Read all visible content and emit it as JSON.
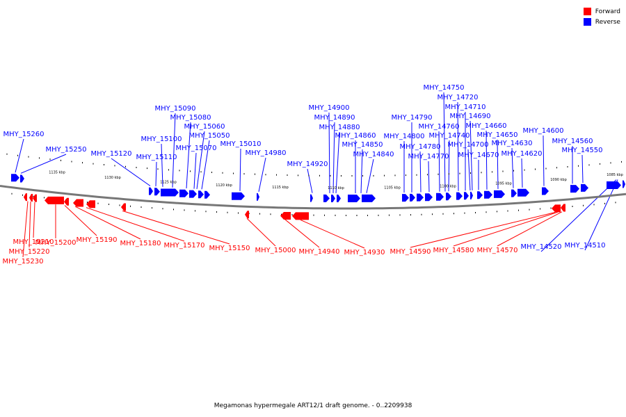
{
  "legend": [
    {
      "label": "Forward",
      "color": "#ff0000"
    },
    {
      "label": "Reverse",
      "color": "#0000ff"
    }
  ],
  "caption": "Megamonas hypermegale ART12/1 draft genome. - 0..2209938",
  "ruler_labels": [
    "1135 kbp",
    "1130 kbp",
    "1125 kbp",
    "1120 kbp",
    "1115 kbp",
    "1110 kbp",
    "1105 kbp",
    "1100 kbp",
    "1095 kbp",
    "1090 kbp",
    "1085 kbp"
  ],
  "colors": {
    "forward": "#ff0000",
    "reverse": "#0000ff",
    "backbone": "#777777"
  },
  "reverse_genes": [
    "MHY_15260",
    "MHY_15250",
    "MHY_15120",
    "MHY_15110",
    "MHY_15100",
    "MHY_15090",
    "MHY_15080",
    "MHY_15060",
    "MHY_15050",
    "MHY_15070",
    "MHY_15010",
    "MHY_14980",
    "MHY_14920",
    "MHY_14900",
    "MHY_14890",
    "MHY_14880",
    "MHY_14860",
    "MHY_14850",
    "MHY_14840",
    "MHY_14800",
    "MHY_14790",
    "MHY_14780",
    "MHY_14770",
    "MHY_14760",
    "MHY_14750",
    "MHY_14740",
    "MHY_14720",
    "MHY_14710",
    "MHY_14700",
    "MHY_14690",
    "MHY_14670",
    "MHY_14660",
    "MHY_14650",
    "MHY_14630",
    "MHY_14620",
    "MHY_14600",
    "MHY_14560",
    "MHY_14550",
    "MHY_14520",
    "MHY_14510"
  ],
  "forward_genes": [
    "MHY_15230",
    "MHY_15220",
    "MHY_15210",
    "MHY_15200",
    "MHY_15190",
    "MHY_15180",
    "MHY_15170",
    "MHY_15150",
    "MHY_15000",
    "MHY_14940",
    "MHY_14930",
    "MHY_14590",
    "MHY_14580",
    "MHY_14570"
  ]
}
